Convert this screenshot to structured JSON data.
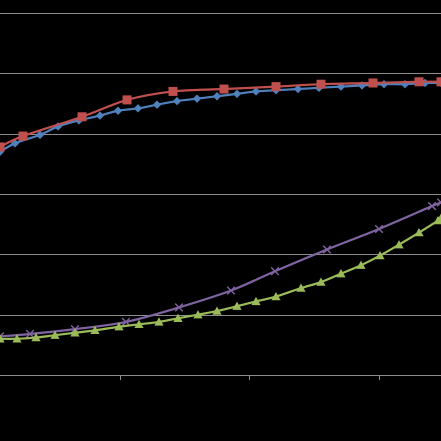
{
  "chart_data": {
    "type": "line",
    "title": "",
    "xlabel": "",
    "ylabel": "",
    "xlim": [
      0,
      441
    ],
    "ylim": [
      0,
      30
    ],
    "x_ticks": [
      120,
      249,
      379
    ],
    "y_gridlines": [
      0,
      5,
      10,
      15,
      20,
      25,
      30
    ],
    "grid": true,
    "legend": "none",
    "colors": {
      "background": "#000000",
      "grid": "#8c8c8c",
      "axis": "#8c8c8c"
    },
    "series": [
      {
        "color": "#c0504d",
        "marker": "square",
        "points": [
          [
            0,
            18.9
          ],
          [
            23,
            19.8
          ],
          [
            82,
            21.4
          ],
          [
            127,
            22.8
          ],
          [
            173,
            23.5
          ],
          [
            224,
            23.7
          ],
          [
            276,
            23.9
          ],
          [
            321,
            24.1
          ],
          [
            373,
            24.2
          ],
          [
            419,
            24.3
          ],
          [
            441,
            24.3
          ]
        ]
      },
      {
        "color": "#4f81bd",
        "marker": "diamond",
        "points": [
          [
            0,
            18.5
          ],
          [
            15,
            19.2
          ],
          [
            40,
            19.9
          ],
          [
            58,
            20.6
          ],
          [
            79,
            21.1
          ],
          [
            100,
            21.5
          ],
          [
            118,
            21.9
          ],
          [
            138,
            22.1
          ],
          [
            157,
            22.4
          ],
          [
            177,
            22.7
          ],
          [
            197,
            22.9
          ],
          [
            217,
            23.1
          ],
          [
            237,
            23.3
          ],
          [
            256,
            23.5
          ],
          [
            276,
            23.6
          ],
          [
            298,
            23.7
          ],
          [
            319,
            23.8
          ],
          [
            341,
            23.9
          ],
          [
            362,
            24.0
          ],
          [
            384,
            24.1
          ],
          [
            405,
            24.1
          ],
          [
            425,
            24.2
          ],
          [
            441,
            24.2
          ]
        ]
      },
      {
        "color": "#8064a2",
        "marker": "x",
        "points": [
          [
            0,
            3.2
          ],
          [
            30,
            3.4
          ],
          [
            75,
            3.8
          ],
          [
            126,
            4.4
          ],
          [
            179,
            5.6
          ],
          [
            231,
            7.0
          ],
          [
            275,
            8.6
          ],
          [
            327,
            10.4
          ],
          [
            379,
            12.1
          ],
          [
            432,
            14.0
          ],
          [
            441,
            14.3
          ]
        ]
      },
      {
        "color": "#9bbb59",
        "marker": "triangle",
        "points": [
          [
            0,
            3.0
          ],
          [
            17,
            3.0
          ],
          [
            36,
            3.1
          ],
          [
            55,
            3.3
          ],
          [
            75,
            3.5
          ],
          [
            95,
            3.7
          ],
          [
            119,
            4.0
          ],
          [
            139,
            4.2
          ],
          [
            159,
            4.4
          ],
          [
            178,
            4.7
          ],
          [
            198,
            5.0
          ],
          [
            217,
            5.3
          ],
          [
            237,
            5.7
          ],
          [
            256,
            6.1
          ],
          [
            276,
            6.5
          ],
          [
            301,
            7.2
          ],
          [
            321,
            7.7
          ],
          [
            341,
            8.4
          ],
          [
            361,
            9.1
          ],
          [
            380,
            9.9
          ],
          [
            399,
            10.8
          ],
          [
            419,
            11.8
          ],
          [
            438,
            12.8
          ],
          [
            441,
            13.0
          ]
        ]
      }
    ]
  }
}
